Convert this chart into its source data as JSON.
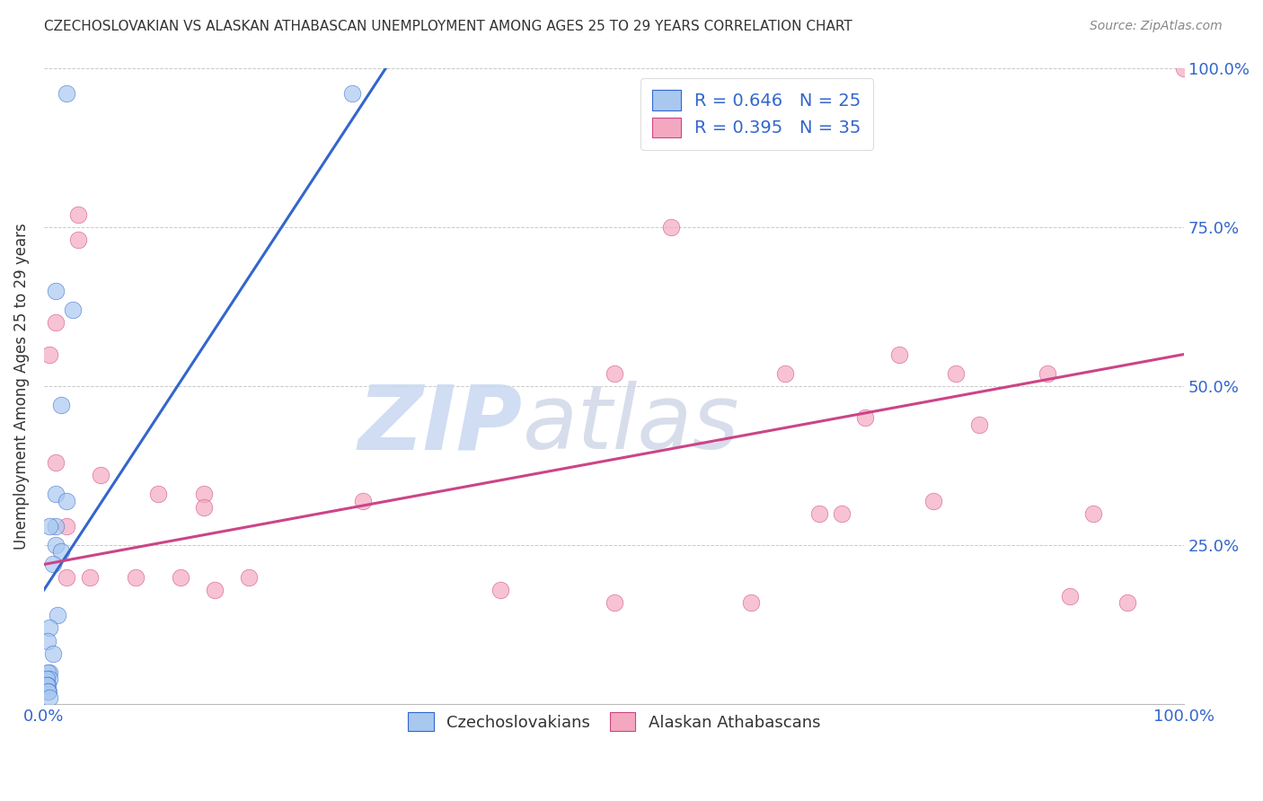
{
  "title": "CZECHOSLOVAKIAN VS ALASKAN ATHABASCAN UNEMPLOYMENT AMONG AGES 25 TO 29 YEARS CORRELATION CHART",
  "source": "Source: ZipAtlas.com",
  "ylabel": "Unemployment Among Ages 25 to 29 years",
  "xlim": [
    0,
    100
  ],
  "ylim": [
    0,
    100
  ],
  "blue_scatter_x": [
    2,
    27,
    1,
    2.5,
    1.5,
    1,
    2,
    1,
    0.5,
    1,
    1.5,
    0.8,
    1.2,
    0.5,
    0.3,
    0.8,
    0.5,
    0.3,
    0.5,
    0.2,
    0.3,
    0.2,
    0.4,
    0.3,
    0.5
  ],
  "blue_scatter_y": [
    96,
    96,
    65,
    62,
    47,
    33,
    32,
    28,
    28,
    25,
    24,
    22,
    14,
    12,
    10,
    8,
    5,
    5,
    4,
    4,
    3,
    3,
    2,
    2,
    1
  ],
  "pink_scatter_x": [
    55,
    1,
    3,
    3,
    5,
    14,
    10,
    14,
    2,
    0.5,
    1,
    2,
    4,
    8,
    12,
    15,
    18,
    28,
    40,
    50,
    62,
    68,
    72,
    80,
    88,
    90,
    92,
    95,
    100,
    65,
    70,
    75,
    82,
    50,
    78
  ],
  "pink_scatter_y": [
    75,
    60,
    77,
    73,
    36,
    33,
    33,
    31,
    28,
    55,
    38,
    20,
    20,
    20,
    20,
    18,
    20,
    32,
    18,
    16,
    16,
    30,
    45,
    52,
    52,
    17,
    30,
    16,
    100,
    52,
    30,
    55,
    44,
    52,
    32
  ],
  "blue_line_x": [
    0,
    30
  ],
  "blue_line_y": [
    18,
    100
  ],
  "pink_line_x": [
    0,
    100
  ],
  "pink_line_y": [
    22,
    55
  ],
  "blue_color": "#A8C8F0",
  "blue_line_color": "#3366CC",
  "pink_color": "#F4A8C0",
  "pink_line_color": "#CC4488",
  "legend_label_blue": "R = 0.646   N = 25",
  "legend_label_pink": "R = 0.395   N = 35",
  "watermark_zip": "ZIP",
  "watermark_atlas": "atlas",
  "background_color": "#FFFFFF",
  "grid_color": "#BBBBBB",
  "axis_label_color": "#3366CC",
  "text_color": "#333333",
  "legend_x_label_blue": "Czechoslovakians",
  "legend_x_label_pink": "Alaskan Athabascans"
}
